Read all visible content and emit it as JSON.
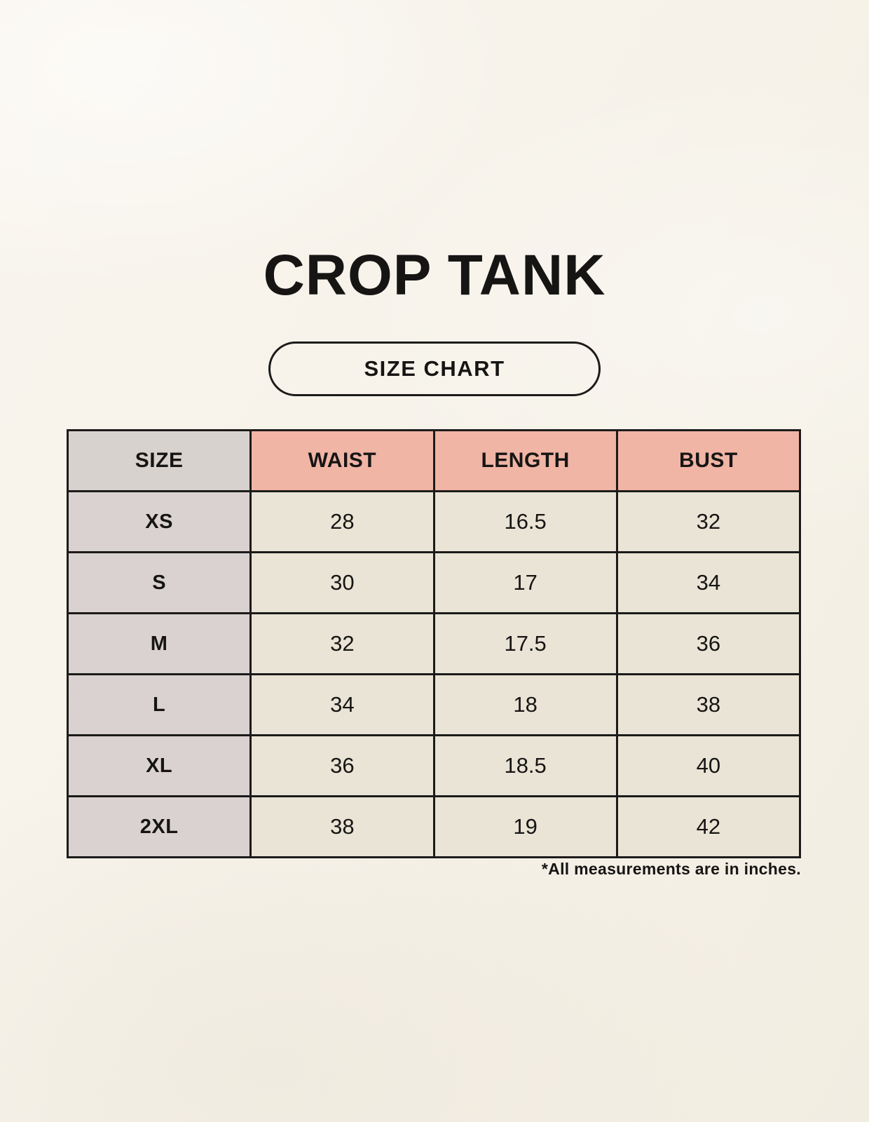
{
  "page": {
    "title": "CROP TANK",
    "size_chart_badge": "SIZE CHART",
    "footnote": "*All measurements are in inches."
  },
  "table": {
    "headers": [
      "SIZE",
      "WAIST",
      "LENGTH",
      "BUST"
    ],
    "rows": [
      [
        "XS",
        "28",
        "16.5",
        "32"
      ],
      [
        "S",
        "30",
        "17",
        "34"
      ],
      [
        "M",
        "32",
        "17.5",
        "36"
      ],
      [
        "L",
        "34",
        "18",
        "38"
      ],
      [
        "XL",
        "36",
        "18.5",
        "40"
      ],
      [
        "2XL",
        "38",
        "19",
        "42"
      ]
    ]
  },
  "colors": {
    "background": "#f7f3ea",
    "header_size_bg": "#d8d2cf",
    "header_measure_bg": "#f0b5a5",
    "size_col_bg": "#d9d2d0",
    "value_cell_bg": "#eae4d6",
    "border": "#1c1b1a",
    "text": "#161514"
  }
}
